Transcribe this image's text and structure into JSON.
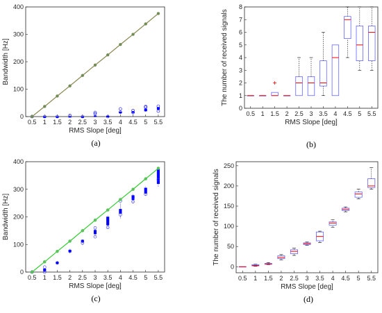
{
  "chart_data": [
    {
      "panel_label": "(a)",
      "type": "line",
      "xlabel": "RMS Slope [deg]",
      "ylabel": "Bandwidth [Hz]",
      "xlim": [
        0.25,
        5.75
      ],
      "ylim": [
        0,
        400
      ],
      "categories": [
        "0.5",
        "1",
        "1.5",
        "2",
        "2.5",
        "3",
        "3.5",
        "4",
        "4.5",
        "5",
        "5.5"
      ],
      "yticks": [
        "0",
        "100",
        "200",
        "300",
        "400"
      ],
      "colors": {
        "line": "#8a8a55",
        "points": "#6b8e5a",
        "box": "#0000ff",
        "outlier": "#0000ff"
      },
      "series": [
        {
          "kind": "line-markers",
          "values": [
            0,
            37,
            75,
            112,
            150,
            188,
            225,
            263,
            300,
            338,
            376
          ]
        }
      ],
      "boxes": [
        {
          "x": 0.5,
          "q1": 0,
          "q3": 0,
          "lo": 0,
          "hi": 0,
          "out": [
            0
          ]
        },
        {
          "x": 1,
          "q1": 0,
          "q3": 0,
          "lo": 0,
          "hi": 0,
          "out": [
            0
          ]
        },
        {
          "x": 1.5,
          "q1": 0,
          "q3": 0,
          "lo": 0,
          "hi": 0,
          "out": [
            0
          ]
        },
        {
          "x": 2,
          "q1": 0,
          "q3": 1,
          "lo": 0,
          "hi": 1,
          "out": [
            4
          ]
        },
        {
          "x": 2.5,
          "q1": 0,
          "q3": 0,
          "lo": 0,
          "hi": 0,
          "out": [
            0
          ]
        },
        {
          "x": 3,
          "q1": 1,
          "q3": 3,
          "lo": 0,
          "hi": 4,
          "out": [
            10,
            15
          ]
        },
        {
          "x": 3.5,
          "q1": 1,
          "q3": 2,
          "lo": 0,
          "hi": 3,
          "out": [
            0
          ]
        },
        {
          "x": 4,
          "q1": 13,
          "q3": 17,
          "lo": 12,
          "hi": 19,
          "out": [
            16,
            28
          ]
        },
        {
          "x": 4.5,
          "q1": 14,
          "q3": 18,
          "lo": 10,
          "hi": 20,
          "out": [
            15,
            22
          ]
        },
        {
          "x": 5,
          "q1": 20,
          "q3": 28,
          "lo": 18,
          "hi": 30,
          "out": [
            34,
            37
          ]
        },
        {
          "x": 5.5,
          "q1": 26,
          "q3": 34,
          "lo": 22,
          "hi": 36,
          "out": [
            20,
            38
          ]
        }
      ],
      "grid": false
    },
    {
      "panel_label": "(b)",
      "type": "box",
      "xlabel": "RMS Slope [deg]",
      "ylabel": "The number of received signals",
      "ylim": [
        0,
        8
      ],
      "categories": [
        "0.5",
        "1",
        "1.5",
        "2",
        "2.5",
        "3",
        "3.5",
        "4",
        "4.5",
        "5",
        "5.5"
      ],
      "yticks": [
        "0",
        "1",
        "2",
        "3",
        "4",
        "5",
        "6",
        "7",
        "8"
      ],
      "colors": {
        "box": "#6464ff",
        "median": "#ff0000",
        "whisker": "#000000",
        "outlier": "#ff0000"
      },
      "boxes": [
        {
          "q1": 1,
          "med": 1,
          "q3": 1,
          "lo": 1,
          "hi": 1,
          "out": []
        },
        {
          "q1": 1,
          "med": 1,
          "q3": 1,
          "lo": 1,
          "hi": 1,
          "out": []
        },
        {
          "q1": 1,
          "med": 1,
          "q3": 1.25,
          "lo": 1,
          "hi": 1.25,
          "out": [
            2
          ]
        },
        {
          "q1": 1,
          "med": 1,
          "q3": 1,
          "lo": 1,
          "hi": 1,
          "out": []
        },
        {
          "q1": 1,
          "med": 2,
          "q3": 2.5,
          "lo": 1,
          "hi": 4,
          "out": []
        },
        {
          "q1": 1,
          "med": 2,
          "q3": 2.5,
          "lo": 1,
          "hi": 4,
          "out": []
        },
        {
          "q1": 1.75,
          "med": 2,
          "q3": 3.75,
          "lo": 1,
          "hi": 6,
          "out": []
        },
        {
          "q1": 1,
          "med": 4,
          "q3": 5,
          "lo": 1,
          "hi": 5,
          "out": []
        },
        {
          "q1": 5.5,
          "med": 7,
          "q3": 7.25,
          "lo": 4,
          "hi": 8,
          "out": []
        },
        {
          "q1": 3.75,
          "med": 5,
          "q3": 6.5,
          "lo": 3,
          "hi": 8,
          "out": []
        },
        {
          "q1": 3.75,
          "med": 6,
          "q3": 6.5,
          "lo": 3,
          "hi": 8,
          "out": []
        }
      ],
      "grid": false
    },
    {
      "panel_label": "(c)",
      "type": "line",
      "xlabel": "RMS Slope [deg]",
      "ylabel": "Bandwidth [Hz]",
      "xlim": [
        0.25,
        5.75
      ],
      "ylim": [
        0,
        400
      ],
      "categories": [
        "0.5",
        "1",
        "1.5",
        "2",
        "2.5",
        "3",
        "3.5",
        "4",
        "4.5",
        "5",
        "5.5"
      ],
      "yticks": [
        "0",
        "100",
        "200",
        "300",
        "400"
      ],
      "colors": {
        "line": "#33cc33",
        "points": "#66bb66",
        "box": "#0000ff",
        "outlier": "#3333ff"
      },
      "series": [
        {
          "kind": "line-markers",
          "values": [
            0,
            37,
            75,
            112,
            150,
            188,
            225,
            263,
            300,
            338,
            376
          ]
        }
      ],
      "boxes": [
        {
          "x": 0.5,
          "q1": 0,
          "q3": 0,
          "lo": 0,
          "hi": 0,
          "out": [
            0
          ]
        },
        {
          "x": 1,
          "q1": 3,
          "q3": 12,
          "lo": 0,
          "hi": 15,
          "out": [
            0,
            18
          ]
        },
        {
          "x": 1.5,
          "q1": 30,
          "q3": 37,
          "lo": 28,
          "hi": 40,
          "out": [
            33
          ]
        },
        {
          "x": 2,
          "q1": 72,
          "q3": 80,
          "lo": 68,
          "hi": 84,
          "out": [
            76
          ]
        },
        {
          "x": 2.5,
          "q1": 108,
          "q3": 116,
          "lo": 100,
          "hi": 120,
          "out": [
            105,
            112
          ]
        },
        {
          "x": 3,
          "q1": 138,
          "q3": 152,
          "lo": 130,
          "hi": 158,
          "out": [
            128,
            160
          ]
        },
        {
          "x": 3.5,
          "q1": 170,
          "q3": 200,
          "lo": 158,
          "hi": 205,
          "out": [
            162
          ]
        },
        {
          "x": 4,
          "q1": 212,
          "q3": 228,
          "lo": 195,
          "hi": 248,
          "out": [
            208,
            258
          ]
        },
        {
          "x": 4.5,
          "q1": 262,
          "q3": 278,
          "lo": 250,
          "hi": 282,
          "out": [
            255,
            272
          ]
        },
        {
          "x": 5,
          "q1": 285,
          "q3": 305,
          "lo": 278,
          "hi": 310,
          "out": [
            282
          ]
        },
        {
          "x": 5.5,
          "q1": 320,
          "q3": 372,
          "lo": 310,
          "hi": 380,
          "out": [
            335
          ]
        }
      ],
      "grid": false
    },
    {
      "panel_label": "(d)",
      "type": "box",
      "xlabel": "RMS Slope [deg]",
      "ylabel": "The number of received signals",
      "ylim": [
        -15,
        260
      ],
      "categories": [
        "0.5",
        "1",
        "1.5",
        "2",
        "2.5",
        "3",
        "3.5",
        "4",
        "4.5",
        "5",
        "5.5"
      ],
      "yticks": [
        "0",
        "50",
        "100",
        "150",
        "200",
        "250"
      ],
      "ytick_values": [
        0,
        50,
        100,
        150,
        200,
        250
      ],
      "colors": {
        "box": "#6464ff",
        "median": "#ff0000",
        "whisker": "#000000",
        "outlier": "#ff0000"
      },
      "boxes": [
        {
          "q1": 0,
          "med": 0,
          "q3": 0,
          "lo": 0,
          "hi": 0,
          "out": []
        },
        {
          "q1": 2,
          "med": 3,
          "q3": 5,
          "lo": 1,
          "hi": 6,
          "out": []
        },
        {
          "q1": 6,
          "med": 7,
          "q3": 8,
          "lo": 5,
          "hi": 10,
          "out": []
        },
        {
          "q1": 20,
          "med": 23,
          "q3": 27,
          "lo": 17,
          "hi": 30,
          "out": []
        },
        {
          "q1": 32,
          "med": 38,
          "q3": 42,
          "lo": 28,
          "hi": 46,
          "out": []
        },
        {
          "q1": 55,
          "med": 57,
          "q3": 59,
          "lo": 53,
          "hi": 61,
          "out": []
        },
        {
          "q1": 64,
          "med": 75,
          "q3": 86,
          "lo": 60,
          "hi": 88,
          "out": []
        },
        {
          "q1": 103,
          "med": 108,
          "q3": 111,
          "lo": 98,
          "hi": 116,
          "out": []
        },
        {
          "q1": 139,
          "med": 142,
          "q3": 145,
          "lo": 136,
          "hi": 148,
          "out": []
        },
        {
          "q1": 172,
          "med": 180,
          "q3": 185,
          "lo": 168,
          "hi": 192,
          "out": []
        },
        {
          "q1": 196,
          "med": 200,
          "q3": 218,
          "lo": 192,
          "hi": 245,
          "out": []
        }
      ],
      "grid": false
    }
  ]
}
